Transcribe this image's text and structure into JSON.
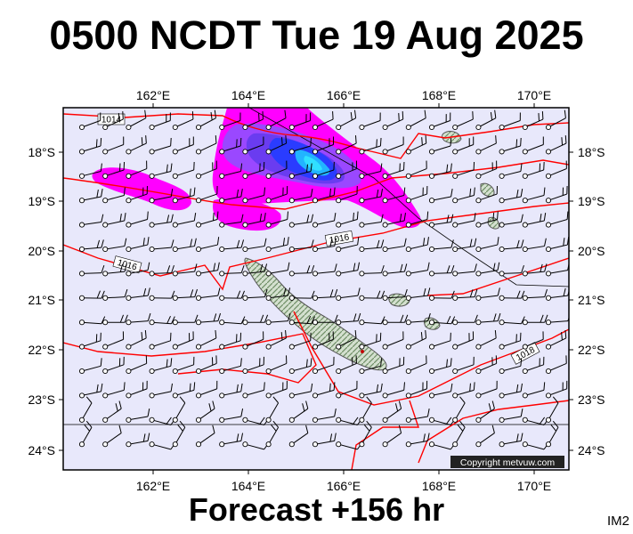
{
  "title": "0500 NCDT Tue 19 Aug 2025",
  "subtitle": "Forecast +156 hr",
  "panel_code": "IM2",
  "copyright": "Copyright metvuw.com",
  "lon_labels": [
    "162°E",
    "164°E",
    "166°E",
    "168°E",
    "170°E"
  ],
  "lat_labels": [
    "18°S",
    "19°S",
    "20°S",
    "21°S",
    "22°S",
    "23°S",
    "24°S"
  ],
  "isobar_labels": [
    "1014",
    "1016",
    "1016",
    "1018"
  ],
  "colors": {
    "ocean": "#e8e8fb",
    "isobar": "#ff0000",
    "land": "#c9d7c4",
    "rain_light": "#ff00ff",
    "rain_mid": "#7b3cff",
    "rain_heavy": "#1a32ff",
    "rain_peak": "#22c8ff"
  }
}
